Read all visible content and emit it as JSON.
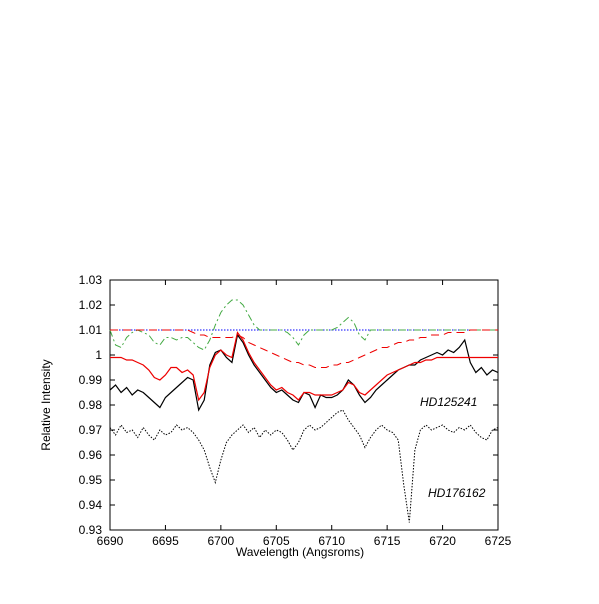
{
  "chart_data": {
    "type": "line",
    "x_label": "Wavelength (Angsroms)",
    "y_label": "Relative Intensity",
    "xlim": [
      6690,
      6725
    ],
    "xticks": [
      6690,
      6695,
      6700,
      6705,
      6710,
      6715,
      6720,
      6725
    ],
    "ylim": [
      0.93,
      1.03
    ],
    "yticks": [
      0.93,
      0.94,
      0.95,
      0.96,
      0.97,
      0.98,
      0.99,
      1,
      1.01,
      1.02,
      1.03
    ],
    "x": [
      6690,
      6690.5,
      6691,
      6691.5,
      6692,
      6692.5,
      6693,
      6693.5,
      6694,
      6694.5,
      6695,
      6695.5,
      6696,
      6696.5,
      6697,
      6697.5,
      6698,
      6698.5,
      6699,
      6699.5,
      6700,
      6700.5,
      6701,
      6701.5,
      6702,
      6702.5,
      6703,
      6703.5,
      6704,
      6704.5,
      6705,
      6705.5,
      6706,
      6706.5,
      6707,
      6707.5,
      6708,
      6708.5,
      6709,
      6709.5,
      6710,
      6710.5,
      6711,
      6711.5,
      6712,
      6712.5,
      6713,
      6713.5,
      6714,
      6714.5,
      6715,
      6715.5,
      6716,
      6716.5,
      6717,
      6717.5,
      6718,
      6718.5,
      6719,
      6719.5,
      6720,
      6720.5,
      6721,
      6721.5,
      6722,
      6722.5,
      6723,
      6723.5,
      6724,
      6724.5,
      6725
    ],
    "series": [
      {
        "color": "#0000ff",
        "style": "dotted",
        "values": [
          1.01,
          1.01,
          1.01,
          1.01,
          1.01,
          1.01,
          1.01,
          1.01,
          1.01,
          1.01,
          1.01,
          1.01,
          1.01,
          1.01,
          1.01,
          1.01,
          1.01,
          1.01,
          1.01,
          1.01,
          1.01,
          1.01,
          1.01,
          1.01,
          1.01,
          1.01,
          1.01,
          1.01,
          1.01,
          1.01,
          1.01,
          1.01,
          1.01,
          1.01,
          1.01,
          1.01,
          1.01,
          1.01,
          1.01,
          1.01,
          1.01,
          1.01,
          1.01,
          1.01,
          1.01,
          1.01,
          1.01,
          1.01,
          1.01,
          1.01,
          1.01,
          1.01,
          1.01,
          1.01,
          1.01,
          1.01,
          1.01,
          1.01,
          1.01,
          1.01,
          1.01,
          1.01,
          1.01,
          1.01,
          1.01,
          1.01,
          1.01,
          1.01,
          1.01,
          1.01,
          1.01
        ]
      },
      {
        "color": "#44aa44",
        "style": "dashdot",
        "values": [
          1.01,
          1.004,
          1.003,
          1.007,
          1.009,
          1.01,
          1.009,
          1.008,
          1.005,
          1.004,
          1.007,
          1.007,
          1.006,
          1.007,
          1.007,
          1.005,
          1.003,
          1.002,
          1.006,
          1.012,
          1.017,
          1.02,
          1.022,
          1.022,
          1.02,
          1.016,
          1.012,
          1.01,
          1.01,
          1.01,
          1.01,
          1.01,
          1.009,
          1.007,
          1.004,
          1.008,
          1.01,
          1.01,
          1.01,
          1.01,
          1.01,
          1.011,
          1.013,
          1.015,
          1.013,
          1.008,
          1.006,
          1.01,
          1.01,
          1.01,
          1.01,
          1.01,
          1.01,
          1.01,
          1.01,
          1.01,
          1.01,
          1.01,
          1.01,
          1.01,
          1.01,
          1.01,
          1.01,
          1.01,
          1.01,
          1.01,
          1.01,
          1.01,
          1.01,
          1.01,
          1.01
        ]
      },
      {
        "color": "#ee0000",
        "style": "dashed",
        "values": [
          1.01,
          1.01,
          1.01,
          1.01,
          1.01,
          1.01,
          1.01,
          1.01,
          1.01,
          1.01,
          1.01,
          1.01,
          1.01,
          1.01,
          1.01,
          1.009,
          1.008,
          1.008,
          1.007,
          1.007,
          1.007,
          1.007,
          1.007,
          1.008,
          1.007,
          1.005,
          1.004,
          1.003,
          1.002,
          1.001,
          1.0,
          0.999,
          0.998,
          0.997,
          0.997,
          0.996,
          0.996,
          0.995,
          0.995,
          0.995,
          0.996,
          0.996,
          0.997,
          0.997,
          0.998,
          0.999,
          1.0,
          1.001,
          1.002,
          1.003,
          1.003,
          1.004,
          1.005,
          1.005,
          1.006,
          1.006,
          1.007,
          1.007,
          1.008,
          1.008,
          1.008,
          1.009,
          1.009,
          1.009,
          1.009,
          1.01,
          1.01,
          1.01,
          1.01,
          1.01,
          1.01
        ]
      },
      {
        "name": "HD176162",
        "color": "#000000",
        "style": "dotted",
        "values": [
          0.971,
          0.968,
          0.972,
          0.969,
          0.97,
          0.967,
          0.971,
          0.968,
          0.966,
          0.97,
          0.968,
          0.969,
          0.972,
          0.97,
          0.971,
          0.969,
          0.966,
          0.962,
          0.955,
          0.949,
          0.958,
          0.965,
          0.968,
          0.97,
          0.972,
          0.969,
          0.971,
          0.967,
          0.97,
          0.968,
          0.97,
          0.969,
          0.966,
          0.962,
          0.965,
          0.97,
          0.972,
          0.97,
          0.971,
          0.973,
          0.975,
          0.977,
          0.978,
          0.974,
          0.971,
          0.968,
          0.963,
          0.967,
          0.97,
          0.972,
          0.97,
          0.969,
          0.966,
          0.948,
          0.933,
          0.962,
          0.97,
          0.972,
          0.97,
          0.971,
          0.972,
          0.97,
          0.969,
          0.971,
          0.97,
          0.972,
          0.969,
          0.967,
          0.966,
          0.97,
          0.971
        ]
      },
      {
        "name": "HD125241",
        "color": "#000000",
        "style": "solid",
        "values": [
          0.986,
          0.988,
          0.985,
          0.987,
          0.984,
          0.986,
          0.985,
          0.983,
          0.981,
          0.979,
          0.983,
          0.985,
          0.987,
          0.989,
          0.991,
          0.99,
          0.978,
          0.982,
          0.996,
          1.001,
          1.002,
          0.999,
          0.997,
          1.008,
          1.005,
          1.0,
          0.996,
          0.993,
          0.99,
          0.987,
          0.985,
          0.986,
          0.984,
          0.982,
          0.981,
          0.985,
          0.984,
          0.979,
          0.984,
          0.983,
          0.983,
          0.984,
          0.986,
          0.99,
          0.988,
          0.984,
          0.981,
          0.983,
          0.986,
          0.988,
          0.99,
          0.992,
          0.994,
          0.995,
          0.996,
          0.996,
          0.998,
          0.999,
          1.0,
          1.001,
          1.0,
          1.002,
          1.001,
          1.003,
          1.006,
          0.997,
          0.993,
          0.995,
          0.992,
          0.994,
          0.993
        ]
      },
      {
        "color": "#ee0000",
        "style": "solid",
        "values": [
          0.999,
          0.999,
          0.999,
          0.998,
          0.998,
          0.997,
          0.996,
          0.994,
          0.991,
          0.99,
          0.992,
          0.995,
          0.995,
          0.993,
          0.994,
          0.992,
          0.982,
          0.985,
          0.995,
          1.0,
          1.002,
          1.0,
          0.999,
          1.009,
          1.006,
          1.001,
          0.997,
          0.994,
          0.991,
          0.988,
          0.986,
          0.987,
          0.985,
          0.984,
          0.982,
          0.985,
          0.985,
          0.984,
          0.984,
          0.984,
          0.984,
          0.985,
          0.986,
          0.989,
          0.988,
          0.985,
          0.984,
          0.986,
          0.988,
          0.99,
          0.992,
          0.993,
          0.994,
          0.995,
          0.996,
          0.997,
          0.997,
          0.998,
          0.998,
          0.999,
          0.999,
          0.999,
          0.999,
          0.999,
          0.999,
          0.999,
          0.999,
          0.999,
          0.999,
          0.999,
          0.999
        ]
      }
    ]
  }
}
